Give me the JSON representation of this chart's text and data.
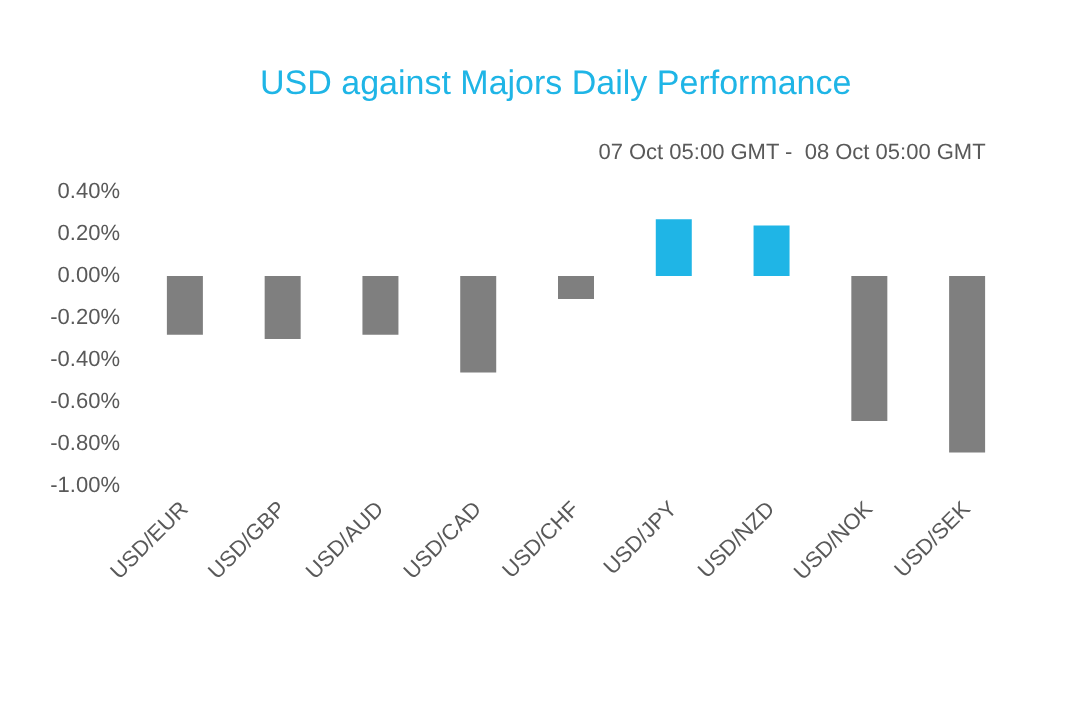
{
  "chart_data": {
    "type": "bar",
    "title": "USD against Majors Daily Performance",
    "subtitle": "07 Oct 05:00 GMT -  08 Oct 05:00 GMT",
    "categories": [
      "USD/EUR",
      "USD/GBP",
      "USD/AUD",
      "USD/CAD",
      "USD/CHF",
      "USD/JPY",
      "USD/NZD",
      "USD/NOK",
      "USD/SEK"
    ],
    "values": [
      -0.28,
      -0.3,
      -0.28,
      -0.46,
      -0.11,
      0.27,
      0.24,
      -0.69,
      -0.84
    ],
    "colors": [
      "#7f7f7f",
      "#7f7f7f",
      "#7f7f7f",
      "#7f7f7f",
      "#7f7f7f",
      "#1fb5e6",
      "#1fb5e6",
      "#7f7f7f",
      "#7f7f7f"
    ],
    "ylim": [
      -1,
      0.4
    ],
    "yticks": [
      {
        "value": -1,
        "label": "-1.00%"
      },
      {
        "value": -0.8,
        "label": "-0.80%"
      },
      {
        "value": -0.6,
        "label": "-0.60%"
      },
      {
        "value": -0.4,
        "label": "-0.40%"
      },
      {
        "value": -0.2,
        "label": "-0.20%"
      },
      {
        "value": 0,
        "label": "0.00%"
      },
      {
        "value": 0.2,
        "label": "0.20%"
      },
      {
        "value": 0.4,
        "label": "0.40%"
      }
    ],
    "grid": false
  }
}
